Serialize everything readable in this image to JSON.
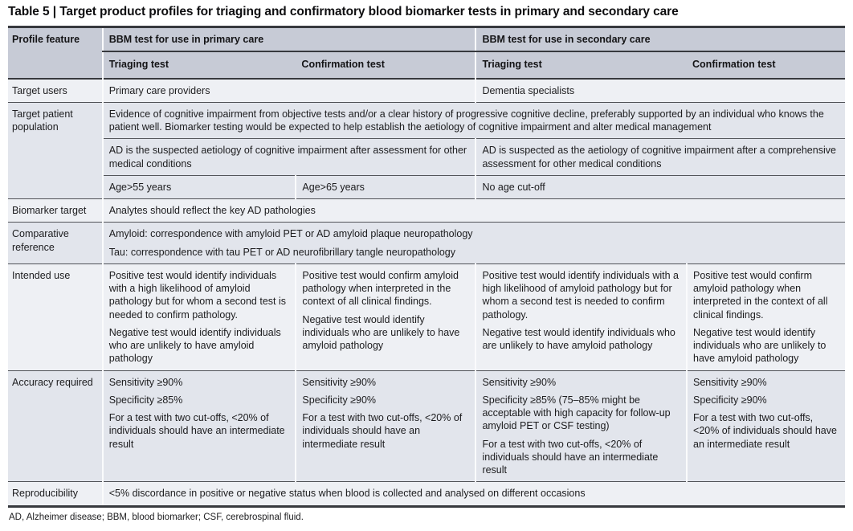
{
  "title": "Table 5 | Target product profiles for triaging and confirmatory blood biomarker tests in primary and secondary care",
  "footnote": "AD, Alzheimer disease; BBM, blood biomarker; CSF, cerebrospinal fluid.",
  "colors": {
    "header_bg": "#c7cbd6",
    "row_light": "#eef0f4",
    "row_dark": "#e2e5ec",
    "border_dark": "#37393e"
  },
  "header": {
    "col0": "Profile feature",
    "primary_group": "BBM test for use in primary care",
    "secondary_group": "BBM test for use in secondary care",
    "sub": [
      "Triaging test",
      "Confirmation test",
      "Triaging test",
      "Confirmation test"
    ]
  },
  "rows": {
    "target_users": {
      "label": "Target users",
      "primary": "Primary care providers",
      "secondary": "Dementia specialists"
    },
    "target_patient_population": {
      "label": "Target patient population",
      "all": "Evidence of cognitive impairment from objective tests and/or a clear history of progressive cognitive decline, preferably supported by an individual who knows the patient well. Biomarker testing would be expected to help establish the aetiology of cognitive impairment and alter medical management",
      "primary": "AD is the suspected aetiology of cognitive impairment after assessment for other medical conditions",
      "secondary": "AD is suspected as the aetiology of cognitive impairment after a comprehensive assessment for other medical conditions",
      "age_primary_triaging": "Age>55 years",
      "age_primary_confirmation": "Age>65 years",
      "age_secondary": "No age cut-off"
    },
    "biomarker_target": {
      "label": "Biomarker target",
      "all": "Analytes should reflect the key AD pathologies"
    },
    "comparative_reference": {
      "label": "Comparative reference",
      "lines": [
        "Amyloid: correspondence with amyloid PET or AD amyloid plaque neuropathology",
        "Tau: correspondence with tau PET or AD neurofibrillary tangle neuropathology"
      ]
    },
    "intended_use": {
      "label": "Intended use",
      "cells": [
        [
          "Positive test would identify individuals with a high likelihood of amyloid pathology but for whom a second test is needed to confirm pathology.",
          "Negative test would identify individuals who are unlikely to have amyloid pathology"
        ],
        [
          "Positive test would confirm amyloid pathology when interpreted in the context of all clinical findings.",
          "Negative test would identify individuals who are unlikely to have amyloid pathology"
        ],
        [
          "Positive test would identify individuals with a high likelihood of amyloid pathology but for whom a second test is needed to confirm pathology.",
          "Negative test would identify individuals who are unlikely to have amyloid pathology"
        ],
        [
          "Positive test would confirm amyloid pathology when interpreted in the context of all clinical findings.",
          "Negative test would identify individuals who are unlikely to have amyloid pathology"
        ]
      ]
    },
    "accuracy_required": {
      "label": "Accuracy required",
      "cells": [
        [
          "Sensitivity ≥90%",
          "Specificity ≥85%",
          "For a test with two cut-offs, <20% of individuals should have an intermediate result"
        ],
        [
          "Sensitivity ≥90%",
          "Specificity ≥90%",
          "For a test with two cut-offs, <20% of individuals should have an intermediate result"
        ],
        [
          "Sensitivity ≥90%",
          "Specificity ≥85% (75–85% might be acceptable with high capacity for follow-up amyloid PET or CSF testing)",
          "For a test with two cut-offs, <20% of individuals should have an intermediate result"
        ],
        [
          "Sensitivity ≥90%",
          "Specificity ≥90%",
          "For a test with two cut-offs, <20% of individuals should have an intermediate result"
        ]
      ]
    },
    "reproducibility": {
      "label": "Reproducibility",
      "all": "<5% discordance in positive or negative status when blood is collected and analysed on different occasions"
    }
  }
}
